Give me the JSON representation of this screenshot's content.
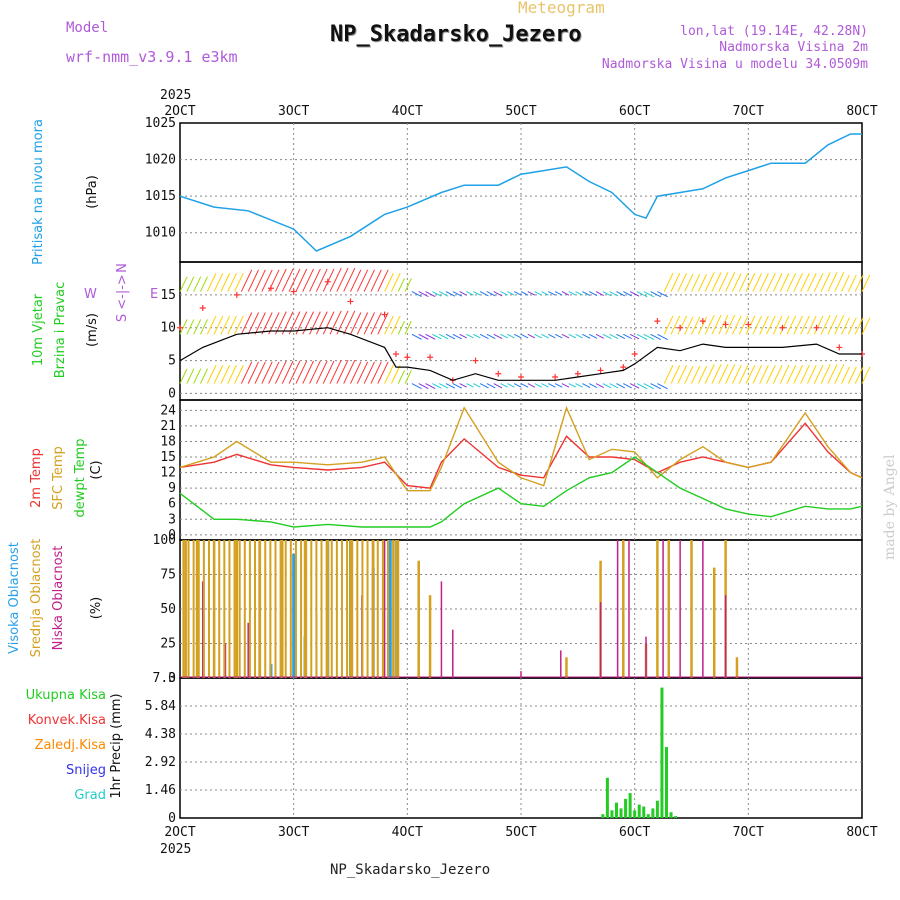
{
  "header": {
    "meteogram_label": "Meteogram",
    "station_title": "NP_Skadarsko_Jezero",
    "model_label": "Model",
    "model_version": "wrf-nmm_v3.9.1 e3km",
    "lonlat": "lon,lat (19.14E, 42.28N)",
    "elevation": "Nadmorska Visina 2m",
    "model_elevation": "Nadmorska Visina u modelu 34.0509m",
    "footer_station": "NP_Skadarsko_Jezero",
    "watermark": "made by Angel"
  },
  "colors": {
    "pressure": "#1ea1e6",
    "wind_speed_line": "#000000",
    "gust": "#ff3333",
    "t2m": "#ee3333",
    "sfc_temp": "#d4a020",
    "dewpoint": "#22cc22",
    "high_cloud": "#2aa0e8",
    "mid_cloud": "#d4a020",
    "low_cloud": "#c0208a",
    "total_precip": "#22cc22",
    "conv_precip": "#ee3333",
    "stratiform_precip": "#ff8800",
    "snow": "#3333ee",
    "graupel": "#22cccc",
    "purple_text": "#b05ad8"
  },
  "chart_data": [
    {
      "type": "line",
      "panel": "pressure",
      "title": "Pritisak na nivou mora",
      "ylabel": "(hPa)",
      "ylim": [
        1006,
        1025
      ],
      "yticks": [
        "1010",
        "1015",
        "1020",
        "1025"
      ],
      "x": [
        2.0,
        2.3,
        2.6,
        3.0,
        3.2,
        3.5,
        3.8,
        4.0,
        4.3,
        4.5,
        4.8,
        5.0,
        5.2,
        5.4,
        5.6,
        5.8,
        6.0,
        6.1,
        6.2,
        6.4,
        6.6,
        6.8,
        7.0,
        7.2,
        7.5,
        7.7,
        7.9,
        8.0
      ],
      "values": [
        1015,
        1013.5,
        1013,
        1010.5,
        1007.5,
        1009.5,
        1012.5,
        1013.5,
        1015.5,
        1016.5,
        1016.5,
        1018,
        1018.5,
        1019,
        1017,
        1015.5,
        1012.5,
        1012,
        1015,
        1015.5,
        1016,
        1017.5,
        1018.5,
        1019.5,
        1019.5,
        1022,
        1023.5,
        1023.5
      ]
    },
    {
      "type": "line",
      "panel": "wind",
      "title": "10m Vjetar Brzina i Pravac",
      "ylabel": "(m/s)",
      "ylim": [
        -1,
        20
      ],
      "yticks": [
        "0",
        "5",
        "10",
        "15"
      ],
      "compass": "W <-|-> E, N/S",
      "series": [
        {
          "name": "10m wind speed",
          "x": [
            2.0,
            2.2,
            2.5,
            2.8,
            3.0,
            3.3,
            3.5,
            3.8,
            3.9,
            4.0,
            4.2,
            4.4,
            4.6,
            4.8,
            5.0,
            5.3,
            5.5,
            5.7,
            5.9,
            6.0,
            6.2,
            6.4,
            6.6,
            6.8,
            7.0,
            7.3,
            7.6,
            7.8,
            8.0
          ],
          "values": [
            5,
            7,
            9,
            9.5,
            9.5,
            10,
            9,
            7,
            4,
            4,
            3.5,
            2,
            3,
            2,
            2,
            2,
            2.5,
            3,
            3.5,
            4.5,
            7,
            6.5,
            7.5,
            7,
            7,
            7,
            7.5,
            6,
            6
          ]
        },
        {
          "name": "gust",
          "x": [
            2.0,
            2.2,
            2.5,
            2.8,
            3.0,
            3.3,
            3.5,
            3.8,
            3.9,
            4.0,
            4.2,
            4.4,
            4.6,
            4.8,
            5.0,
            5.3,
            5.5,
            5.7,
            5.9,
            6.0,
            6.2,
            6.4,
            6.6,
            6.8,
            7.0,
            7.3,
            7.6,
            7.8,
            8.0
          ],
          "values": [
            10,
            13,
            15,
            16,
            15.5,
            17,
            14,
            12,
            6,
            5.5,
            5.5,
            2,
            5,
            3,
            2.5,
            2.5,
            3,
            3.5,
            4,
            6,
            11,
            10,
            11,
            10.5,
            10.5,
            10,
            10,
            7,
            6
          ]
        }
      ]
    },
    {
      "type": "line",
      "panel": "temperature",
      "title": "2m Temp / SFC Temp / dewpt Temp",
      "ylabel": "(C)",
      "ylim": [
        -1,
        26
      ],
      "yticks": [
        "0",
        "3",
        "6",
        "9",
        "12",
        "15",
        "18",
        "21",
        "24"
      ],
      "x": [
        2.0,
        2.3,
        2.5,
        2.8,
        3.0,
        3.3,
        3.6,
        3.8,
        4.0,
        4.2,
        4.3,
        4.5,
        4.8,
        5.0,
        5.2,
        5.4,
        5.6,
        5.8,
        6.0,
        6.2,
        6.4,
        6.6,
        6.8,
        7.0,
        7.2,
        7.5,
        7.7,
        7.9,
        8.0
      ],
      "series": [
        {
          "name": "2m Temp",
          "values": [
            13,
            14,
            15.5,
            13.5,
            13,
            12.5,
            13,
            14,
            9.5,
            9,
            14,
            18.5,
            13,
            11.5,
            11,
            19,
            15,
            15,
            14.5,
            12,
            14,
            15,
            14,
            13,
            14,
            21.5,
            16,
            12,
            11
          ]
        },
        {
          "name": "SFC Temp",
          "values": [
            13,
            15,
            18,
            14,
            14,
            13.5,
            14,
            15,
            8.5,
            8.5,
            13,
            24.5,
            14,
            11,
            9.5,
            24.5,
            14.5,
            16.5,
            16,
            11,
            14.5,
            17,
            14,
            13,
            14,
            23.5,
            17,
            12,
            11
          ]
        },
        {
          "name": "dewpt Temp",
          "values": [
            8,
            3,
            3,
            2.5,
            1.5,
            2,
            1.5,
            1.5,
            1.5,
            1.5,
            2.5,
            6,
            9,
            6,
            5.5,
            8.5,
            11,
            12,
            15,
            12,
            9,
            7,
            5,
            4,
            3.5,
            5.5,
            5,
            5,
            5.5
          ]
        }
      ]
    },
    {
      "type": "bar",
      "panel": "cloud",
      "title": "Visoka / Srednja / Niska Oblacnost",
      "ylabel": "(%)",
      "ylim": [
        0,
        100
      ],
      "yticks": [
        "0",
        "25",
        "50",
        "75",
        "100"
      ],
      "series": [
        {
          "name": "Visoka Oblacnost",
          "x": [
            2.8,
            3.0,
            3.1,
            3.3,
            3.5,
            3.7,
            3.85,
            3.9
          ],
          "values": [
            10,
            90,
            30,
            100,
            100,
            80,
            100,
            100
          ]
        },
        {
          "name": "Srednja Oblacnost",
          "x": [
            2.05,
            2.15,
            2.3,
            2.5,
            2.7,
            2.9,
            3.1,
            3.3,
            3.5,
            3.7,
            3.9,
            4.1,
            4.2,
            5.4,
            5.7,
            5.9,
            6.1,
            6.2,
            6.3,
            6.5,
            6.7,
            6.8,
            6.9
          ],
          "values": [
            100,
            100,
            100,
            100,
            100,
            100,
            100,
            100,
            100,
            100,
            100,
            85,
            60,
            15,
            85,
            100,
            25,
            100,
            100,
            100,
            80,
            100,
            15
          ]
        },
        {
          "name": "Niska Oblacnost",
          "x": [
            2.2,
            2.4,
            2.6,
            3.2,
            3.6,
            3.8,
            4.3,
            4.4,
            5.0,
            5.35,
            5.7,
            5.85,
            5.95,
            6.1,
            6.25,
            6.4,
            6.6,
            6.8
          ],
          "values": [
            70,
            25,
            40,
            45,
            60,
            100,
            70,
            35,
            5,
            20,
            55,
            100,
            100,
            30,
            100,
            100,
            100,
            60
          ]
        }
      ]
    },
    {
      "type": "bar",
      "panel": "precip",
      "title": "1hr Precip",
      "ylabel": "1hr Precip (mm)",
      "ylim": [
        0,
        7.3
      ],
      "yticks": [
        "0",
        "1.46",
        "2.92",
        "4.38",
        "5.84",
        "7.3"
      ],
      "legend": [
        "Ukupna Kisa",
        "Konvek.Kisa",
        "Zaledj.Kisa",
        "Snijeg",
        "Grad"
      ],
      "x": [
        5.72,
        5.76,
        5.8,
        5.84,
        5.88,
        5.92,
        5.96,
        6.0,
        6.04,
        6.08,
        6.12,
        6.16,
        6.2,
        6.24,
        6.28,
        6.32,
        6.36
      ],
      "values": [
        0.2,
        2.1,
        0.4,
        0.8,
        0.5,
        1.0,
        1.3,
        0.4,
        0.7,
        0.6,
        0.2,
        0.5,
        0.9,
        6.8,
        3.7,
        0.3,
        0.1
      ]
    }
  ],
  "axis": {
    "x_ticks": [
      "2OCT",
      "3OCT",
      "4OCT",
      "5OCT",
      "6OCT",
      "7OCT",
      "8OCT"
    ],
    "year": "2025"
  },
  "panel_labels": {
    "pressure": {
      "title": "Pritisak na nivou mora",
      "unit": "(hPa)"
    },
    "wind": {
      "line1": "10m Vjetar",
      "line2": "Brzina i Pravac",
      "unit": "(m/s)",
      "compass_w": "W",
      "compass_e": "E",
      "compass_mid": "<-|->",
      "compass_n": "N",
      "compass_s": "S"
    },
    "temp": {
      "l1": "2m Temp",
      "l2": "SFC Temp",
      "l3": "dewpt Temp",
      "unit": "(C)"
    },
    "cloud": {
      "l1": "Visoka Oblacnost",
      "l2": "Srednja Oblacnost",
      "l3": "Niska Oblacnost",
      "unit": "(%)"
    },
    "precip": {
      "unit": "1hr Precip (mm)",
      "l1": "Ukupna Kisa",
      "l2": "Konvek.Kisa",
      "l3": "Zaledj.Kisa",
      "l4": "Snijeg",
      "l5": "Grad"
    }
  }
}
